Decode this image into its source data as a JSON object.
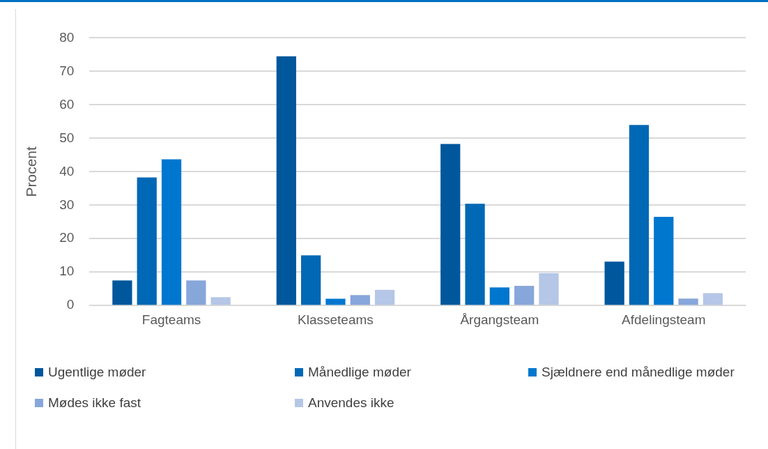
{
  "chart_data": {
    "type": "bar",
    "ylabel": "Procent",
    "categories": [
      "Fagteams",
      "Klasseteams",
      "Årgangsteam",
      "Afdelingsteam"
    ],
    "series": [
      {
        "name": "Ugentlige møder",
        "color": "#00579c",
        "values": [
          7.5,
          74.5,
          48.3,
          13.1
        ]
      },
      {
        "name": "Månedlige møder",
        "color": "#0068b5",
        "values": [
          38.3,
          15.0,
          30.4,
          54.0
        ]
      },
      {
        "name": "Sjældnere end månedlige møder",
        "color": "#0077cf",
        "values": [
          43.7,
          2.0,
          5.4,
          26.5
        ]
      },
      {
        "name": "Mødes ikke fast",
        "color": "#87a6da",
        "values": [
          7.5,
          3.1,
          5.9,
          2.1
        ]
      },
      {
        "name": "Anvendes ikke",
        "color": "#b5c6e6",
        "values": [
          2.5,
          4.7,
          9.7,
          3.7
        ]
      }
    ],
    "ylim": [
      0,
      80
    ],
    "yticks": [
      0,
      10,
      20,
      30,
      40,
      50,
      60,
      70,
      80
    ],
    "grid": "y",
    "legend": "bottom"
  }
}
